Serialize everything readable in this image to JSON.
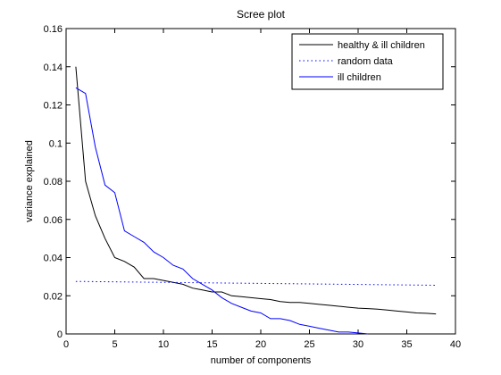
{
  "chart_data": {
    "type": "line",
    "title": "Scree plot",
    "xlabel": "number of components",
    "ylabel": "variance explained",
    "xlim": [
      0,
      40
    ],
    "ylim": [
      0,
      0.16
    ],
    "xticks": [
      "0",
      "5",
      "10",
      "15",
      "20",
      "25",
      "30",
      "35",
      "40"
    ],
    "xtick_values": [
      0,
      5,
      10,
      15,
      20,
      25,
      30,
      35,
      40
    ],
    "yticks": [
      "0",
      "0.02",
      "0.04",
      "0.06",
      "0.08",
      "0.1",
      "0.12",
      "0.14",
      "0.16"
    ],
    "ytick_values": [
      0,
      0.02,
      0.04,
      0.06,
      0.08,
      0.1,
      0.12,
      0.14,
      0.16
    ],
    "grid": false,
    "legend_position": "top-right",
    "series": [
      {
        "name": "healthy & ill children",
        "color": "#000000",
        "style": "solid",
        "x": [
          1,
          2,
          3,
          4,
          5,
          6,
          7,
          8,
          9,
          10,
          11,
          12,
          13,
          14,
          15,
          16,
          17,
          18,
          19,
          20,
          21,
          22,
          23,
          24,
          25,
          26,
          27,
          28,
          29,
          30,
          31,
          32,
          33,
          34,
          35,
          36,
          37,
          38
        ],
        "y": [
          0.14,
          0.08,
          0.062,
          0.05,
          0.04,
          0.038,
          0.035,
          0.029,
          0.029,
          0.028,
          0.027,
          0.026,
          0.024,
          0.023,
          0.022,
          0.022,
          0.02,
          0.0195,
          0.019,
          0.0185,
          0.018,
          0.017,
          0.0165,
          0.0165,
          0.016,
          0.0155,
          0.015,
          0.0145,
          0.014,
          0.0135,
          0.0133,
          0.013,
          0.0125,
          0.012,
          0.0115,
          0.011,
          0.0108,
          0.0105
        ]
      },
      {
        "name": "random data",
        "color": "#0000ff",
        "style": "dotted",
        "x": [
          1,
          38
        ],
        "y": [
          0.0275,
          0.0255
        ]
      },
      {
        "name": "ill children",
        "color": "#0000ff",
        "style": "solid",
        "x": [
          1,
          2,
          3,
          4,
          5,
          6,
          7,
          8,
          9,
          10,
          11,
          12,
          13,
          14,
          15,
          16,
          17,
          18,
          19,
          20,
          21,
          22,
          23,
          24,
          25,
          26,
          27,
          28,
          29,
          30,
          31
        ],
        "y": [
          0.129,
          0.126,
          0.098,
          0.078,
          0.074,
          0.054,
          0.051,
          0.048,
          0.043,
          0.04,
          0.036,
          0.034,
          0.029,
          0.026,
          0.023,
          0.019,
          0.016,
          0.014,
          0.012,
          0.011,
          0.008,
          0.008,
          0.007,
          0.005,
          0.004,
          0.003,
          0.002,
          0.001,
          0.001,
          0.0005,
          0.0
        ]
      }
    ]
  }
}
